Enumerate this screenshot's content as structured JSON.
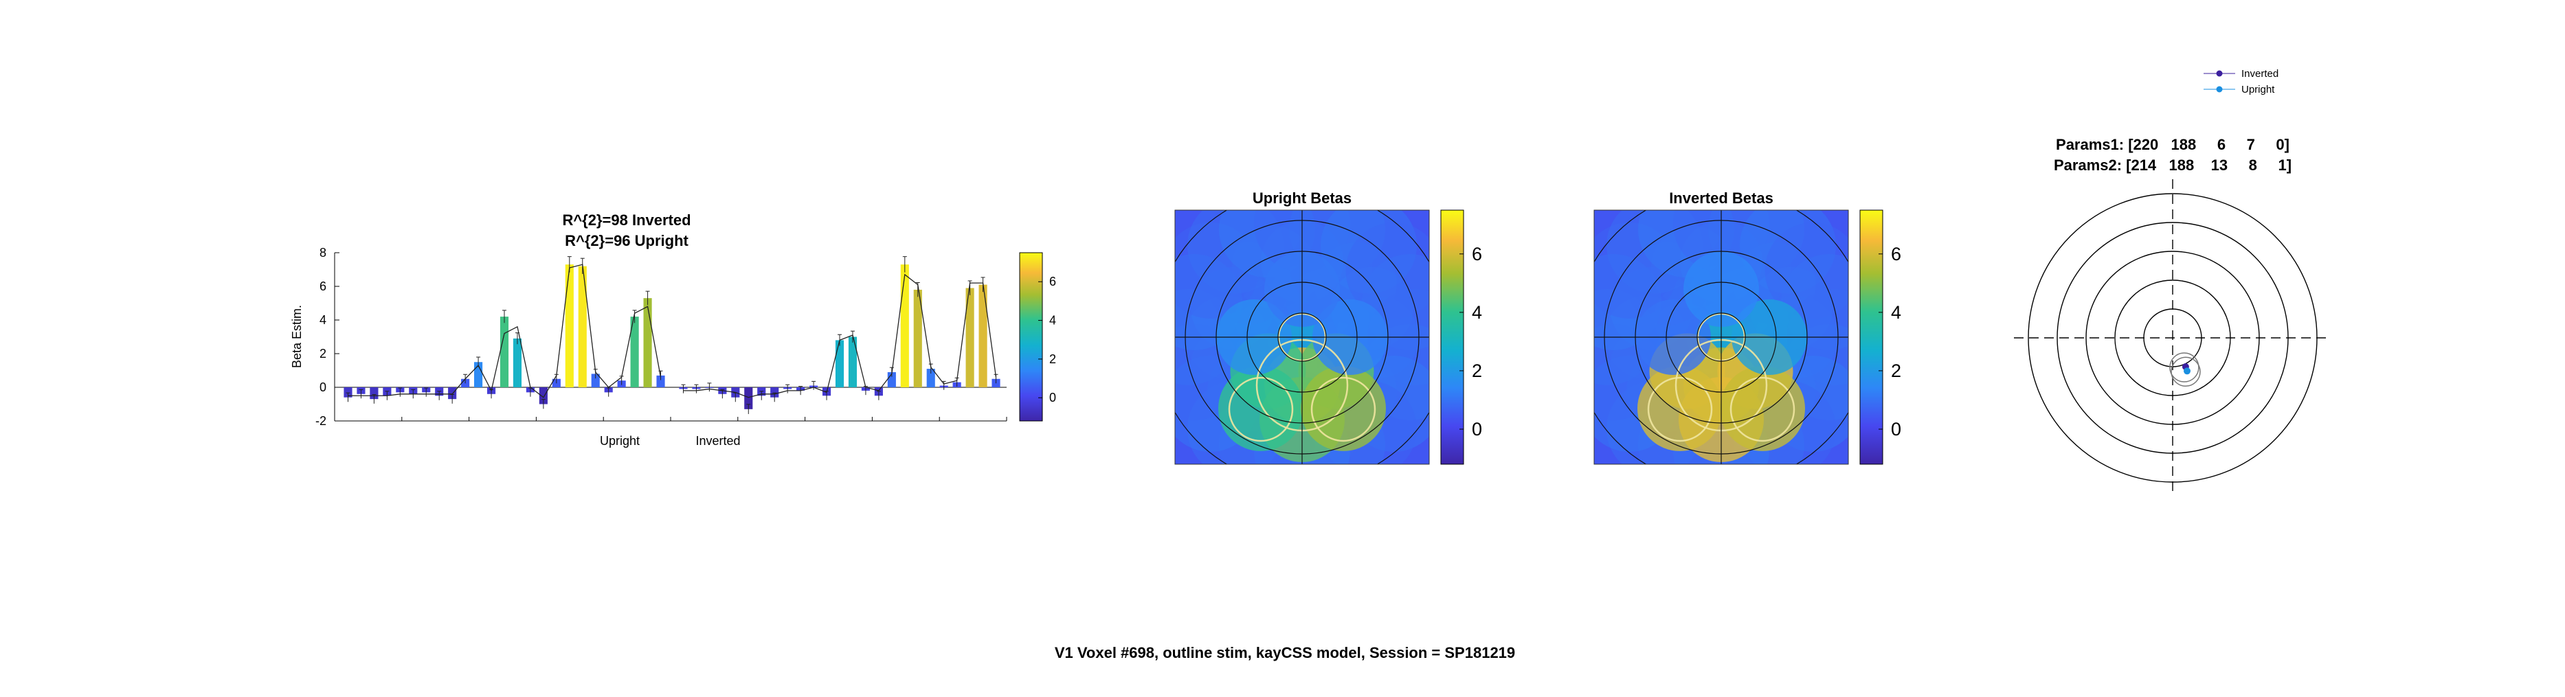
{
  "figure": {
    "suptitle": "V1 Voxel #698, outline stim, kayCSS model, Session = SP181219"
  },
  "colors": {
    "bar_base": "#4421c4",
    "fit_line": "#222222",
    "circle_line": "#f0e6a0",
    "legend_inverted": "#3b1f9e",
    "legend_upright": "#1a8fe0"
  },
  "chart_data": [
    {
      "type": "bar",
      "title_lines": [
        "R^{2}=98 Inverted",
        "R^{2}=96 Upright"
      ],
      "ylabel": "Beta Estim.",
      "ylim": [
        -2,
        8
      ],
      "yticks": [
        -2,
        0,
        2,
        4,
        6,
        8
      ],
      "group_labels": [
        "Upright",
        "Inverted"
      ],
      "colorbar": {
        "ticks": [
          0,
          2,
          4,
          6
        ],
        "range": [
          -1.2,
          7.5
        ]
      },
      "series": [
        {
          "name": "Upright",
          "values": [
            -0.6,
            -0.4,
            -0.7,
            -0.5,
            -0.3,
            -0.4,
            -0.3,
            -0.5,
            -0.7,
            0.5,
            1.5,
            -0.4,
            4.2,
            2.9,
            -0.3,
            -1.0,
            0.5,
            7.3,
            7.2,
            0.8,
            -0.3,
            0.4,
            4.2,
            5.3,
            0.7
          ],
          "fit": [
            -0.5,
            -0.5,
            -0.5,
            -0.5,
            -0.4,
            -0.4,
            -0.4,
            -0.4,
            -0.4,
            0.5,
            1.3,
            -0.2,
            3.2,
            3.6,
            0.0,
            -0.6,
            0.7,
            7.1,
            7.3,
            0.9,
            0.0,
            0.6,
            4.4,
            4.8,
            0.6
          ]
        },
        {
          "name": "Inverted",
          "values": [
            -0.1,
            -0.1,
            0.0,
            -0.4,
            -0.6,
            -1.3,
            -0.5,
            -0.6,
            -0.1,
            -0.2,
            0.1,
            -0.5,
            2.8,
            3.0,
            -0.2,
            -0.5,
            0.9,
            7.3,
            5.8,
            1.1,
            0.1,
            0.3,
            5.9,
            6.1,
            0.5
          ],
          "fit": [
            -0.2,
            -0.2,
            -0.1,
            -0.2,
            -0.3,
            -0.6,
            -0.4,
            -0.4,
            -0.2,
            -0.2,
            0.0,
            -0.3,
            2.8,
            3.1,
            0.0,
            -0.2,
            0.8,
            6.7,
            6.1,
            1.2,
            0.2,
            0.4,
            6.2,
            6.2,
            0.6
          ]
        }
      ]
    },
    {
      "type": "heatmap",
      "title": "Upright Betas",
      "colorbar": {
        "ticks": [
          0,
          2,
          4,
          6
        ],
        "range": [
          -1.2,
          7.5
        ]
      },
      "blobs": [
        {
          "ring": 0,
          "value": 2.5
        },
        {
          "ring": 1,
          "angle": 270,
          "value": 6.2
        },
        {
          "ring": 1,
          "angle": 225,
          "value": 4.0
        },
        {
          "ring": 1,
          "angle": 315,
          "value": 4.5
        },
        {
          "ring": 2,
          "angle": 270,
          "value": 4.6
        },
        {
          "ring": 2,
          "angle": 240,
          "value": 4.0
        },
        {
          "ring": 2,
          "angle": 300,
          "value": 5.2
        },
        {
          "ring": 1,
          "angle": 180,
          "value": 1.6
        },
        {
          "ring": 1,
          "angle": 0,
          "value": 1.3
        },
        {
          "ring": 1,
          "angle": 90,
          "value": 1.1
        }
      ],
      "background_value": 0.4
    },
    {
      "type": "heatmap",
      "title": "Inverted Betas",
      "colorbar": {
        "ticks": [
          0,
          2,
          4,
          6
        ],
        "range": [
          -1.2,
          7.5
        ]
      },
      "blobs": [
        {
          "ring": 0,
          "value": 2.8
        },
        {
          "ring": 1,
          "angle": 270,
          "value": 5.6
        },
        {
          "ring": 1,
          "angle": 225,
          "value": 6.0
        },
        {
          "ring": 1,
          "angle": 315,
          "value": 6.2
        },
        {
          "ring": 2,
          "angle": 270,
          "value": 6.2
        },
        {
          "ring": 2,
          "angle": 240,
          "value": 6.0
        },
        {
          "ring": 2,
          "angle": 300,
          "value": 5.8
        },
        {
          "ring": 1,
          "angle": 180,
          "value": 1.0
        },
        {
          "ring": 1,
          "angle": 0,
          "value": 2.2
        },
        {
          "ring": 1,
          "angle": 90,
          "value": 1.4
        }
      ],
      "background_value": 0.4
    },
    {
      "type": "scatter",
      "title_lines": [
        "Params1: [220   188     6     7     0]",
        "Params2: [214   188    13     8     1]"
      ],
      "legend": {
        "placement": "top-right",
        "entries": [
          "Inverted",
          "Upright"
        ]
      },
      "points": [
        {
          "name": "Inverted",
          "x": 0.45,
          "y": -1.0
        },
        {
          "name": "Upright",
          "x": 0.5,
          "y": -1.15
        }
      ]
    }
  ]
}
